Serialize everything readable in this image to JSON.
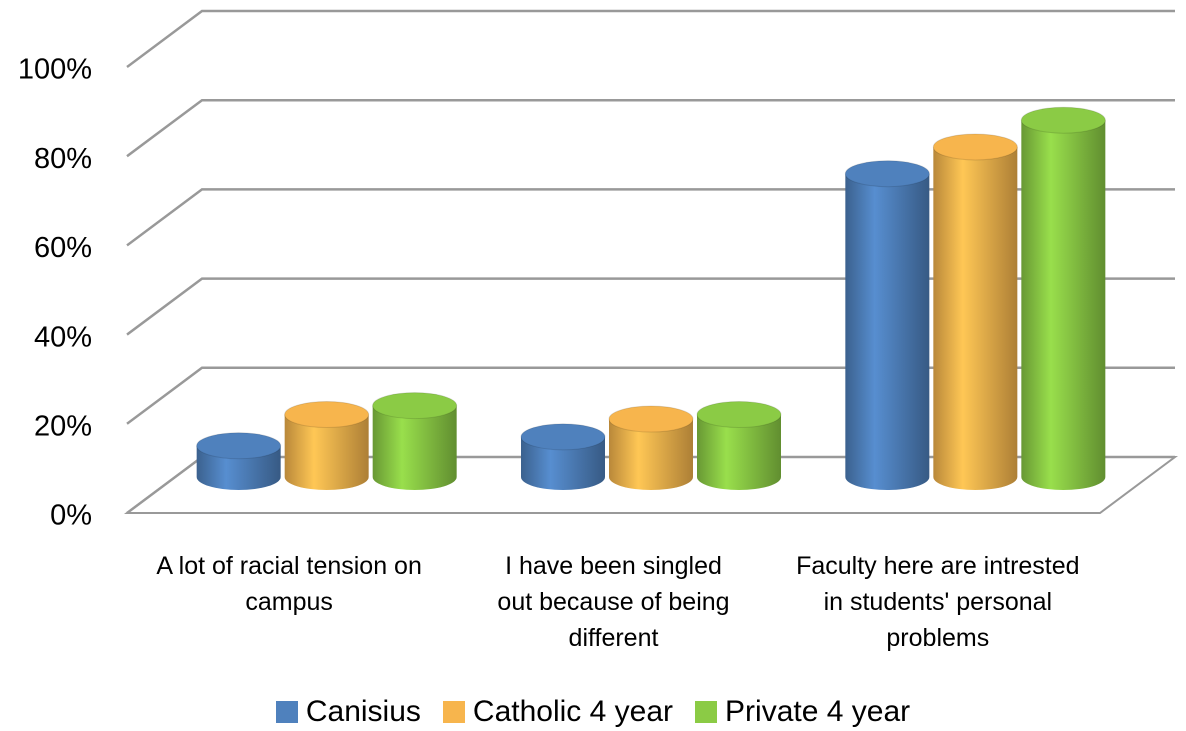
{
  "chart_data": {
    "type": "bar3d",
    "categories": [
      "A lot of racial tension on campus",
      "I have been singled out because of being different",
      "Faculty here are intrested in students' personal problems"
    ],
    "series": [
      {
        "name": "Canisius",
        "color": "#4f81bd",
        "values": [
          7,
          9,
          68
        ]
      },
      {
        "name": "Catholic 4 year",
        "color": "#f7b54d",
        "values": [
          14,
          13,
          74
        ]
      },
      {
        "name": "Private 4 year",
        "color": "#8bcb45",
        "values": [
          16,
          14,
          80
        ]
      }
    ],
    "ylim": [
      0,
      100
    ],
    "yticks": [
      {
        "value": 0,
        "label": "0%"
      },
      {
        "value": 20,
        "label": "20%"
      },
      {
        "value": 40,
        "label": "40%"
      },
      {
        "value": 60,
        "label": "60%"
      },
      {
        "value": 80,
        "label": "80%"
      },
      {
        "value": 100,
        "label": "100%"
      }
    ],
    "grid": true,
    "legend": "bottom"
  }
}
